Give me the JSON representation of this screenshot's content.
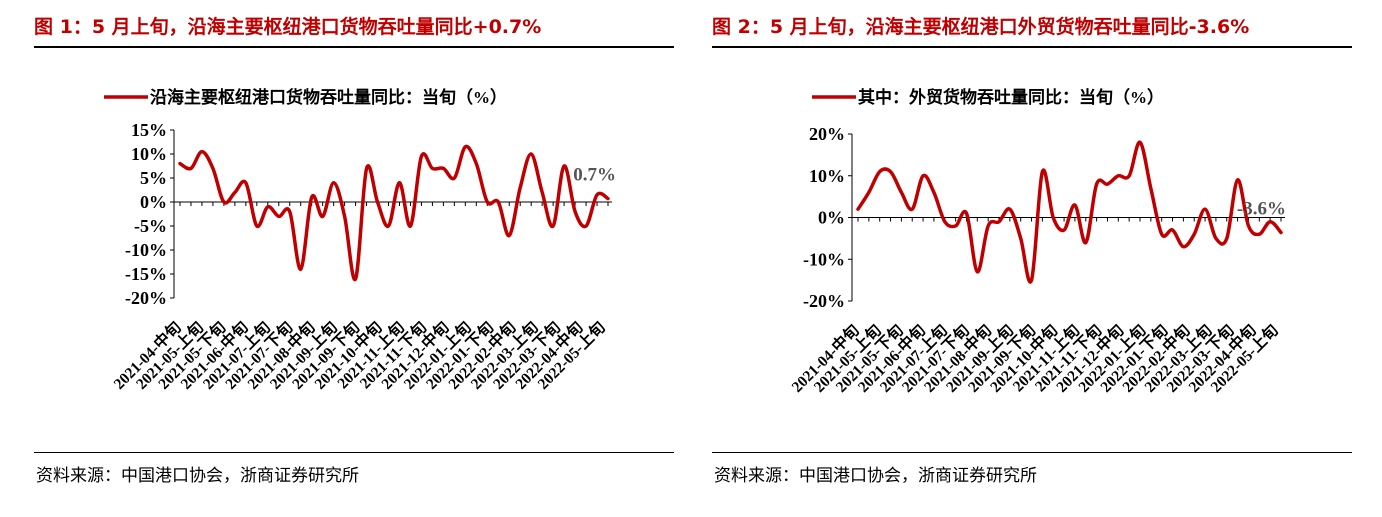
{
  "panels": [
    {
      "title": "图 1：5 月上旬，沿海主要枢纽港口货物吞吐量同比+0.7%",
      "source": "资料来源：中国港口协会，浙商证券研究所"
    },
    {
      "title": "图 2：5 月上旬，沿海主要枢纽港口外贸货物吞吐量同比-3.6%",
      "source": "资料来源：中国港口协会，浙商证券研究所"
    }
  ],
  "chart_data": [
    {
      "type": "line",
      "legend": "沿海主要枢纽港口货物吞吐量同比：当旬（%）",
      "series_color": "#c00000",
      "ylim": [
        -20,
        15
      ],
      "yticks": [
        "15%",
        "10%",
        "5%",
        "0%",
        "-5%",
        "-10%",
        "-15%",
        "-20%"
      ],
      "x_labels": [
        "2021-04-中旬",
        "2021-05-上旬",
        "2021-05-下旬",
        "2021-06-中旬",
        "2021-07-上旬",
        "2021-07-下旬",
        "2021-08-中旬",
        "2021-09-上旬",
        "2021-09-下旬",
        "2021-10-中旬",
        "2021-11-上旬",
        "2021-11-下旬",
        "2021-12-中旬",
        "2022-01-上旬",
        "2022-01-下旬",
        "2022-02-中旬",
        "2022-03-上旬",
        "2022-03-下旬",
        "2022-04-中旬",
        "2022-05-上旬"
      ],
      "values": [
        8,
        7,
        10.5,
        7,
        0,
        2,
        4,
        -5,
        -1,
        -3,
        -2,
        -14,
        1,
        -3,
        4,
        -3,
        -16,
        7,
        0,
        -5,
        4,
        -5,
        9.5,
        7,
        7,
        5,
        11.5,
        8,
        0,
        0,
        -7,
        3,
        10,
        2,
        -5,
        7.5,
        -2,
        -5,
        1.5,
        0.7
      ],
      "annotation": "0.7%"
    },
    {
      "type": "line",
      "legend": "其中：外贸货物吞吐量同比：当旬（%）",
      "series_color": "#c00000",
      "ylim": [
        -20,
        20
      ],
      "yticks": [
        "20%",
        "10%",
        "0%",
        "-10%",
        "-20%"
      ],
      "x_labels": [
        "2021-04-中旬",
        "2021-05-上旬",
        "2021-05-下旬",
        "2021-06-中旬",
        "2021-07-上旬",
        "2021-07-下旬",
        "2021-08-中旬",
        "2021-09-上旬",
        "2021-09-下旬",
        "2021-10-中旬",
        "2021-11-上旬",
        "2021-11-下旬",
        "2021-12-中旬",
        "2022-01-上旬",
        "2022-01-下旬",
        "2022-02-中旬",
        "2022-03-上旬",
        "2022-03-下旬",
        "2022-04-中旬",
        "2022-05-上旬"
      ],
      "values": [
        2,
        6,
        11,
        11,
        6,
        2,
        10,
        6,
        -1,
        -2,
        1,
        -13,
        -2,
        -1,
        2,
        -5,
        -15,
        11,
        0,
        -3,
        3,
        -6,
        8,
        8,
        10,
        10,
        18,
        7,
        -4,
        -3,
        -7,
        -4,
        2,
        -5,
        -5,
        9,
        -2,
        -4,
        -1,
        -3.6
      ],
      "annotation": "-3.6%"
    }
  ]
}
